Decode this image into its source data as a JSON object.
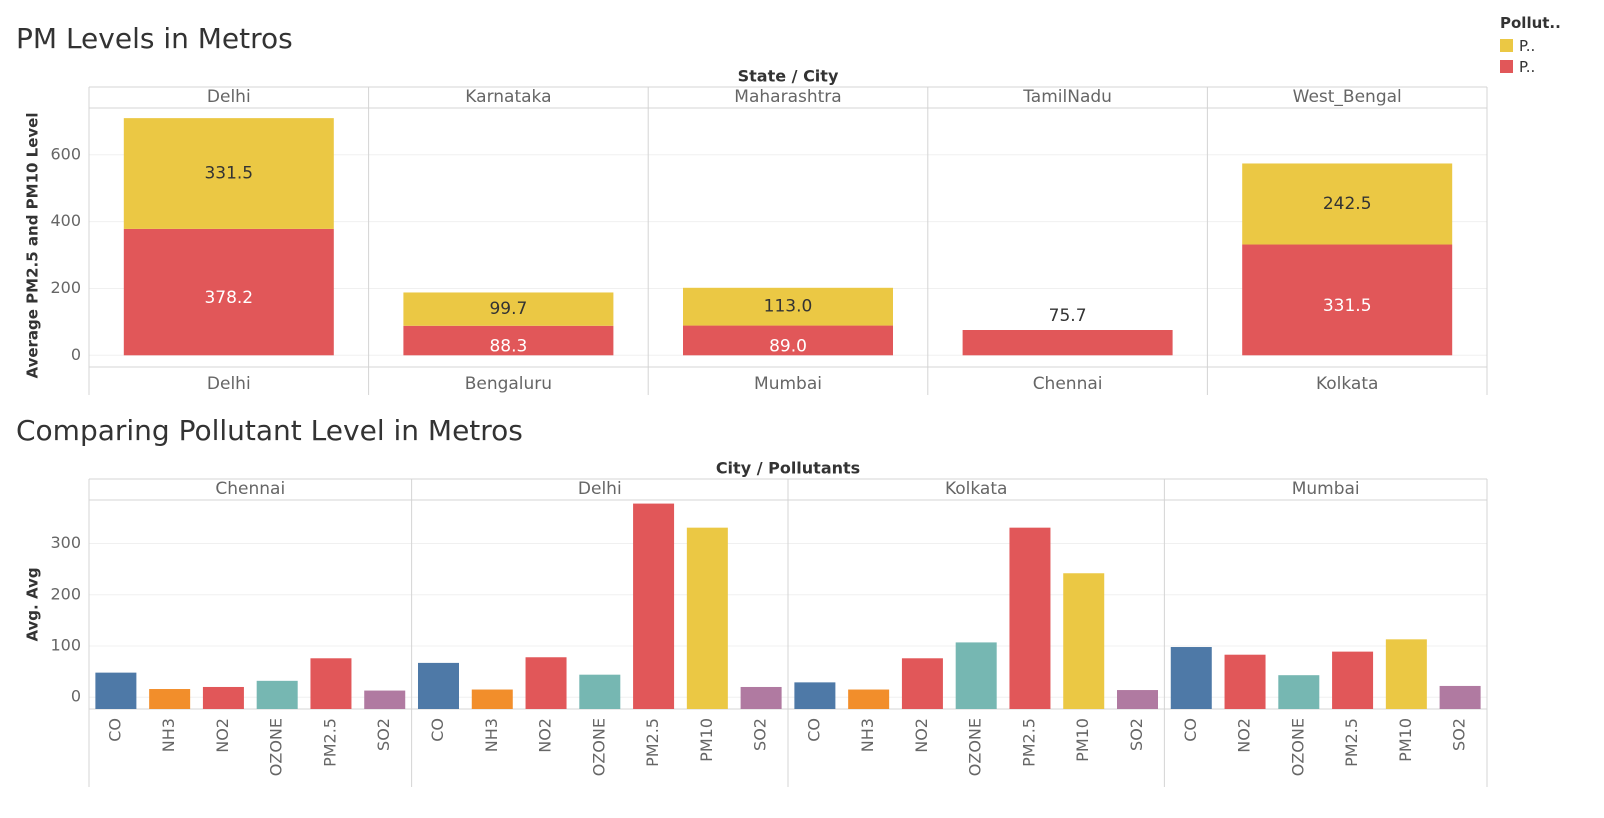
{
  "titles": {
    "top": "PM Levels in Metros",
    "bottom": "Comparing Pollutant Level in Metros"
  },
  "legend": {
    "title": "Pollut..",
    "items": [
      {
        "label": "P..",
        "color": "#EBC844"
      },
      {
        "label": "P..",
        "color": "#E15759"
      }
    ]
  },
  "chart_data": [
    {
      "type": "bar",
      "stacked": true,
      "title": "PM Levels in Metros",
      "header": "State / City",
      "ylabel": "Average PM2.5 and PM10 Level",
      "ylim": [
        -35,
        740
      ],
      "yticks": [
        0,
        200,
        400,
        600
      ],
      "grid": true,
      "legend_position": "top-right",
      "groups": [
        {
          "state": "Delhi",
          "city": "Delhi",
          "pm25": 378.2,
          "pm10": 331.5,
          "pm25_label": "378.2",
          "pm10_label": "331.5"
        },
        {
          "state": "Karnataka",
          "city": "Bengaluru",
          "pm25": 88.3,
          "pm10": 99.7,
          "pm25_label": "88.3",
          "pm10_label": "99.7"
        },
        {
          "state": "Maharashtra",
          "city": "Mumbai",
          "pm25": 89.0,
          "pm10": 113.0,
          "pm25_label": "89.0",
          "pm10_label": "113.0"
        },
        {
          "state": "TamilNadu",
          "city": "Chennai",
          "pm25": 75.7,
          "pm10": 0,
          "pm25_label": "75.7",
          "pm10_label": ""
        },
        {
          "state": "West_Bengal",
          "city": "Kolkata",
          "pm25": 331.5,
          "pm10": 242.5,
          "pm25_label": "331.5",
          "pm10_label": "242.5"
        }
      ],
      "colors": {
        "pm25": "#E15759",
        "pm10": "#EBC844"
      }
    },
    {
      "type": "bar",
      "title": "Comparing Pollutant Level in Metros",
      "header": "City / Pollutants",
      "ylabel": "Avg. Avg",
      "ylim": [
        -23,
        385
      ],
      "yticks": [
        0,
        100,
        200,
        300
      ],
      "grid": true,
      "groups": [
        {
          "city": "Chennai",
          "items": [
            {
              "name": "CO",
              "value": 48
            },
            {
              "name": "NH3",
              "value": 16
            },
            {
              "name": "NO2",
              "value": 20
            },
            {
              "name": "OZONE",
              "value": 32
            },
            {
              "name": "PM2.5",
              "value": 76
            },
            {
              "name": "SO2",
              "value": 13
            }
          ]
        },
        {
          "city": "Delhi",
          "items": [
            {
              "name": "CO",
              "value": 67
            },
            {
              "name": "NH3",
              "value": 15
            },
            {
              "name": "NO2",
              "value": 78
            },
            {
              "name": "OZONE",
              "value": 44
            },
            {
              "name": "PM2.5",
              "value": 378
            },
            {
              "name": "PM10",
              "value": 331
            },
            {
              "name": "SO2",
              "value": 20
            }
          ]
        },
        {
          "city": "Kolkata",
          "items": [
            {
              "name": "CO",
              "value": 29
            },
            {
              "name": "NH3",
              "value": 15
            },
            {
              "name": "NO2",
              "value": 76
            },
            {
              "name": "OZONE",
              "value": 107
            },
            {
              "name": "PM2.5",
              "value": 331
            },
            {
              "name": "PM10",
              "value": 242
            },
            {
              "name": "SO2",
              "value": 14
            }
          ]
        },
        {
          "city": "Mumbai",
          "items": [
            {
              "name": "CO",
              "value": 98
            },
            {
              "name": "NO2",
              "value": 83
            },
            {
              "name": "OZONE",
              "value": 43
            },
            {
              "name": "PM2.5",
              "value": 89
            },
            {
              "name": "PM10",
              "value": 113
            },
            {
              "name": "SO2",
              "value": 22
            }
          ]
        }
      ],
      "colors": {
        "CO": "#4E79A7",
        "NH3": "#F28E2B",
        "NO2": "#E15759",
        "OZONE": "#76B7B2",
        "PM2.5": "#E15759",
        "PM10": "#EBC844",
        "SO2": "#B07AA1"
      }
    }
  ]
}
